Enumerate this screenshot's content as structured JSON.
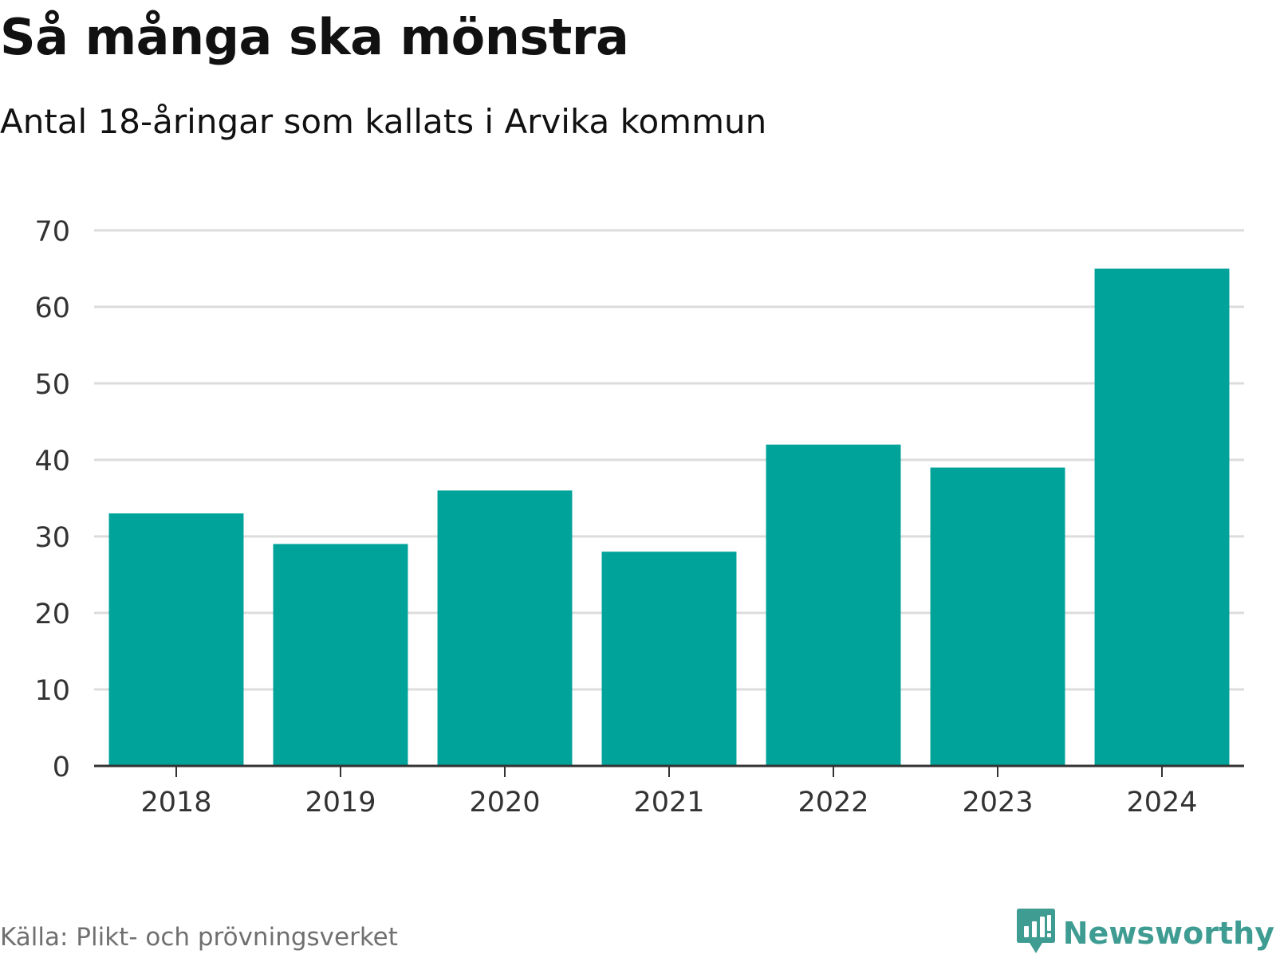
{
  "header": {
    "title": "Så många ska mönstra",
    "subtitle": "Antal 18-åringar som kallats i Arvika kommun"
  },
  "footer": {
    "source": "Källa: Plikt- och prövningsverket",
    "brand": "Newsworthy",
    "brand_icon": "newsworthy-logo-icon"
  },
  "colors": {
    "bar": "#00a39a",
    "grid": "#dcdcdc",
    "axis": "#333333",
    "tick_text": "#333333",
    "brand": "#3f9c92"
  },
  "chart_data": {
    "type": "bar",
    "title": "Så många ska mönstra",
    "subtitle": "Antal 18-åringar som kallats i Arvika kommun",
    "categories": [
      "2018",
      "2019",
      "2020",
      "2021",
      "2022",
      "2023",
      "2024"
    ],
    "values": [
      33,
      29,
      36,
      28,
      42,
      39,
      65
    ],
    "xlabel": "",
    "ylabel": "",
    "ylim": [
      0,
      70
    ],
    "yticks": [
      0,
      10,
      20,
      30,
      40,
      50,
      60,
      70
    ],
    "grid": true,
    "legend": "none"
  }
}
